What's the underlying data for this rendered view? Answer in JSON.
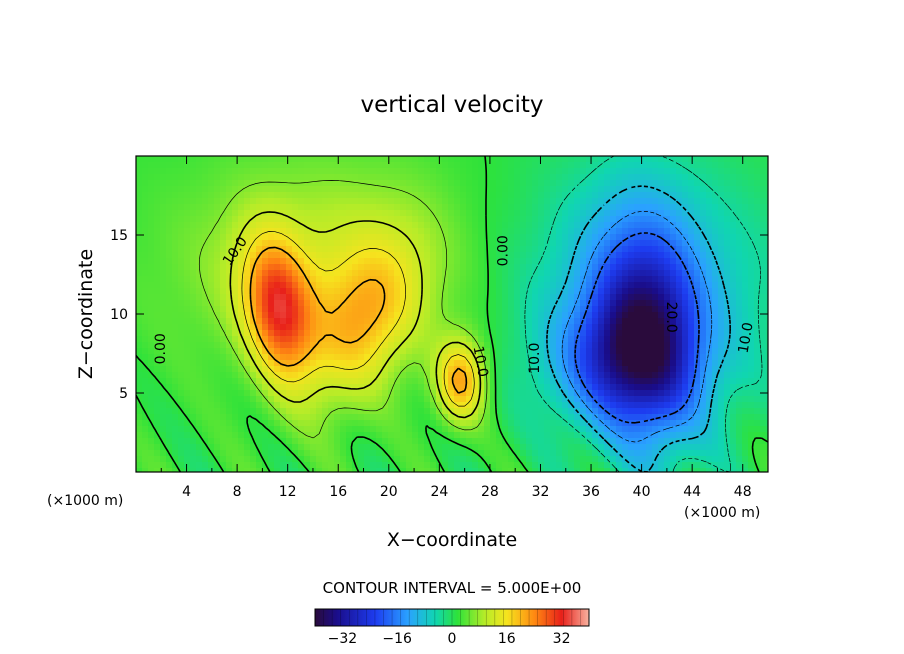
{
  "chart_data": {
    "type": "heatmap",
    "title": "vertical velocity",
    "xlabel": "X−coordinate",
    "ylabel": "Z−coordinate",
    "x_unit_left": "(×1000 m)",
    "x_unit_right": "(×1000 m)",
    "xlim": [
      0,
      50
    ],
    "ylim": [
      0,
      20
    ],
    "x_ticks": [
      "4",
      "8",
      "12",
      "16",
      "20",
      "24",
      "28",
      "32",
      "36",
      "40",
      "44",
      "48"
    ],
    "y_ticks": [
      "5",
      "10",
      "15"
    ],
    "contour_interval_text": "CONTOUR INTERVAL = 5.000E+00",
    "colorbar": {
      "range": [
        -40,
        40
      ],
      "tick_labels": [
        "−32",
        "−16",
        "0",
        "16",
        "32"
      ],
      "tick_values": [
        -32,
        -16,
        0,
        16,
        32
      ]
    },
    "contour_labels": [
      {
        "text": "10.0",
        "x": 7.8,
        "z": 14.0,
        "rotation": -55
      },
      {
        "text": "0.00",
        "x": 29.0,
        "z": 14.0,
        "rotation": -90
      },
      {
        "text": "0.00",
        "x": 1.9,
        "z": 7.8,
        "rotation": -90
      },
      {
        "text": "10.0",
        "x": 27.3,
        "z": 7.0,
        "rotation": 80
      },
      {
        "text": "10.0",
        "x": 31.5,
        "z": 7.2,
        "rotation": -90
      },
      {
        "text": "20.0",
        "x": 42.4,
        "z": 9.8,
        "rotation": 90
      },
      {
        "text": "10.0",
        "x": 48.2,
        "z": 8.5,
        "rotation": -80
      }
    ],
    "centers": [
      {
        "sign": 1,
        "x": 11.3,
        "z": 10.2,
        "amp": 26,
        "sx": 1.8,
        "sz": 3.2,
        "rot": 0.25
      },
      {
        "sign": 1,
        "x": 18.0,
        "z": 9.5,
        "amp": 15,
        "sx": 2.6,
        "sz": 4.0,
        "rot": -0.6
      },
      {
        "sign": 1,
        "x": 25.7,
        "z": 5.8,
        "amp": 21,
        "sx": 1.4,
        "sz": 1.9,
        "rot": 0.0
      },
      {
        "sign": 1,
        "x": 15.0,
        "z": 13.0,
        "amp": 10,
        "sx": 8.0,
        "sz": 4.5,
        "rot": 0.0
      },
      {
        "sign": -1,
        "x": 40.5,
        "z": 9.0,
        "amp": 26,
        "sx": 3.0,
        "sz": 5.0,
        "rot": 0.1
      },
      {
        "sign": -1,
        "x": 38.0,
        "z": 7.0,
        "amp": 14,
        "sx": 3.5,
        "sz": 2.6,
        "rot": 0.0
      },
      {
        "sign": -1,
        "x": 40.0,
        "z": 11.0,
        "amp": 10,
        "sx": 8.0,
        "sz": 6.0,
        "rot": 0.0
      }
    ]
  }
}
